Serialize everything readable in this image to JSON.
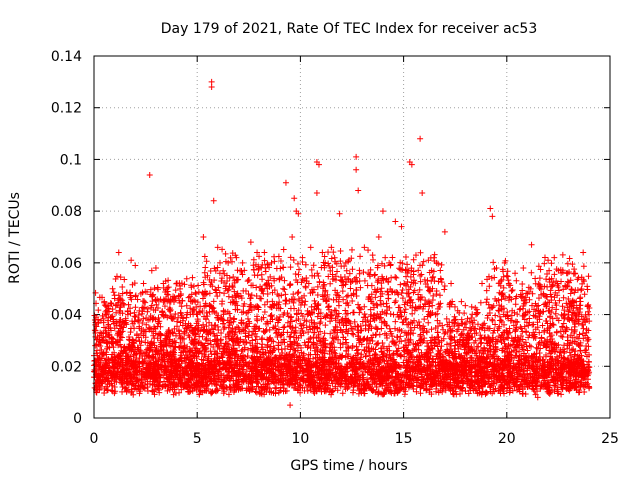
{
  "chart_data": {
    "type": "scatter",
    "title": "Day 179 of 2021, Rate Of TEC Index for receiver ac53",
    "xlabel": "GPS time / hours",
    "ylabel": "ROTI / TECUs",
    "xlim": [
      0,
      25
    ],
    "ylim": [
      0,
      0.14
    ],
    "x_ticks": [
      "0",
      "5",
      "10",
      "15",
      "20",
      "25"
    ],
    "y_ticks": [
      "0",
      "0.02",
      "0.04",
      "0.06",
      "0.08",
      "0.1",
      "0.12",
      "0.14"
    ],
    "grid": true,
    "legend": "none",
    "marker": "plus",
    "series": [
      {
        "color": "#ff0000",
        "points": [
          [
            0.1,
            0.039
          ],
          [
            0.3,
            0.033
          ],
          [
            0.5,
            0.045
          ],
          [
            0.9,
            0.05
          ],
          [
            1.2,
            0.064
          ],
          [
            1.8,
            0.061
          ],
          [
            2.0,
            0.059
          ],
          [
            2.4,
            0.052
          ],
          [
            2.7,
            0.094
          ],
          [
            2.8,
            0.057
          ],
          [
            3.0,
            0.058
          ],
          [
            3.3,
            0.041
          ],
          [
            3.8,
            0.046
          ],
          [
            4.1,
            0.047
          ],
          [
            4.5,
            0.04
          ],
          [
            4.9,
            0.045
          ],
          [
            5.3,
            0.07
          ],
          [
            5.5,
            0.055
          ],
          [
            5.7,
            0.13
          ],
          [
            5.7,
            0.128
          ],
          [
            5.8,
            0.084
          ],
          [
            6.1,
            0.056
          ],
          [
            6.5,
            0.06
          ],
          [
            6.9,
            0.062
          ],
          [
            7.2,
            0.06
          ],
          [
            7.6,
            0.068
          ],
          [
            7.9,
            0.064
          ],
          [
            8.3,
            0.058
          ],
          [
            8.6,
            0.06
          ],
          [
            9.0,
            0.054
          ],
          [
            9.3,
            0.091
          ],
          [
            9.6,
            0.07
          ],
          [
            9.7,
            0.085
          ],
          [
            9.8,
            0.08
          ],
          [
            9.9,
            0.079
          ],
          [
            10.1,
            0.062
          ],
          [
            10.5,
            0.066
          ],
          [
            10.8,
            0.099
          ],
          [
            10.9,
            0.098
          ],
          [
            10.8,
            0.087
          ],
          [
            11.2,
            0.06
          ],
          [
            11.5,
            0.066
          ],
          [
            11.9,
            0.079
          ],
          [
            12.2,
            0.06
          ],
          [
            12.5,
            0.065
          ],
          [
            12.7,
            0.101
          ],
          [
            12.7,
            0.096
          ],
          [
            12.8,
            0.088
          ],
          [
            13.1,
            0.066
          ],
          [
            13.5,
            0.063
          ],
          [
            13.8,
            0.07
          ],
          [
            14.0,
            0.08
          ],
          [
            14.3,
            0.06
          ],
          [
            14.6,
            0.076
          ],
          [
            14.9,
            0.074
          ],
          [
            15.1,
            0.057
          ],
          [
            15.3,
            0.099
          ],
          [
            15.4,
            0.098
          ],
          [
            15.6,
            0.063
          ],
          [
            15.8,
            0.108
          ],
          [
            15.9,
            0.087
          ],
          [
            16.2,
            0.061
          ],
          [
            16.6,
            0.06
          ],
          [
            17.0,
            0.072
          ],
          [
            17.3,
            0.052
          ],
          [
            17.8,
            0.045
          ],
          [
            18.3,
            0.043
          ],
          [
            18.8,
            0.052
          ],
          [
            19.2,
            0.081
          ],
          [
            19.3,
            0.078
          ],
          [
            19.5,
            0.058
          ],
          [
            19.9,
            0.06
          ],
          [
            20.4,
            0.056
          ],
          [
            20.8,
            0.058
          ],
          [
            21.2,
            0.067
          ],
          [
            21.6,
            0.051
          ],
          [
            22.0,
            0.061
          ],
          [
            22.3,
            0.062
          ],
          [
            22.5,
            0.057
          ],
          [
            22.9,
            0.056
          ],
          [
            23.3,
            0.056
          ],
          [
            23.7,
            0.064
          ],
          [
            0.2,
            0.012
          ],
          [
            0.6,
            0.021
          ],
          [
            1.0,
            0.015
          ],
          [
            1.4,
            0.025
          ],
          [
            1.9,
            0.009
          ],
          [
            2.3,
            0.018
          ],
          [
            2.9,
            0.013
          ],
          [
            3.4,
            0.022
          ],
          [
            3.9,
            0.011
          ],
          [
            4.4,
            0.017
          ],
          [
            4.8,
            0.024
          ],
          [
            5.2,
            0.014
          ],
          [
            5.9,
            0.019
          ],
          [
            6.4,
            0.012
          ],
          [
            6.8,
            0.026
          ],
          [
            7.3,
            0.016
          ],
          [
            7.8,
            0.021
          ],
          [
            8.2,
            0.013
          ],
          [
            8.7,
            0.027
          ],
          [
            9.1,
            0.018
          ],
          [
            9.5,
            0.005
          ],
          [
            10.0,
            0.022
          ],
          [
            10.4,
            0.014
          ],
          [
            11.0,
            0.028
          ],
          [
            11.4,
            0.01
          ],
          [
            11.8,
            0.019
          ],
          [
            12.3,
            0.024
          ],
          [
            12.9,
            0.015
          ],
          [
            13.3,
            0.027
          ],
          [
            13.7,
            0.012
          ],
          [
            14.2,
            0.02
          ],
          [
            14.7,
            0.026
          ],
          [
            15.2,
            0.013
          ],
          [
            15.7,
            0.022
          ],
          [
            16.3,
            0.017
          ],
          [
            16.8,
            0.024
          ],
          [
            17.2,
            0.012
          ],
          [
            17.7,
            0.018
          ],
          [
            18.1,
            0.015
          ],
          [
            18.6,
            0.021
          ],
          [
            19.0,
            0.01
          ],
          [
            19.6,
            0.023
          ],
          [
            20.1,
            0.016
          ],
          [
            20.6,
            0.011
          ],
          [
            21.1,
            0.02
          ],
          [
            21.5,
            0.008
          ],
          [
            22.1,
            0.025
          ],
          [
            22.6,
            0.014
          ],
          [
            23.1,
            0.019
          ],
          [
            23.5,
            0.012
          ],
          [
            23.9,
            0.017
          ]
        ]
      }
    ]
  }
}
